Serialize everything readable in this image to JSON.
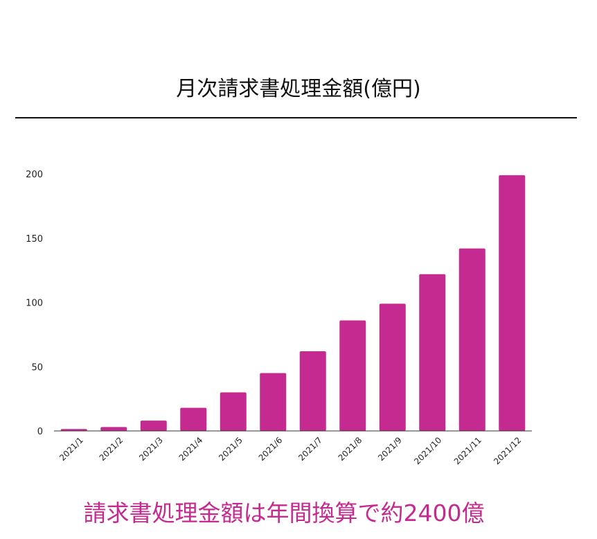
{
  "header": {
    "title": "月次請求書処理金額(億円)"
  },
  "caption": "請求書処理金額は年間換算で約2400億",
  "chart_data": {
    "type": "bar",
    "title": "月次請求書処理金額(億円)",
    "xlabel": "",
    "ylabel": "",
    "categories": [
      "2021/1",
      "2021/2",
      "2021/3",
      "2021/4",
      "2021/5",
      "2021/6",
      "2021/7",
      "2021/8",
      "2021/9",
      "2021/10",
      "2021/11",
      "2021/12"
    ],
    "values": [
      1.5,
      3,
      8,
      18,
      30,
      45,
      62,
      86,
      99,
      122,
      142,
      199
    ],
    "ylim": [
      0,
      200
    ],
    "yticks": [
      0,
      50,
      100,
      150,
      200
    ],
    "grid": false,
    "legend": "none",
    "bar_color": "#c42a8f"
  }
}
